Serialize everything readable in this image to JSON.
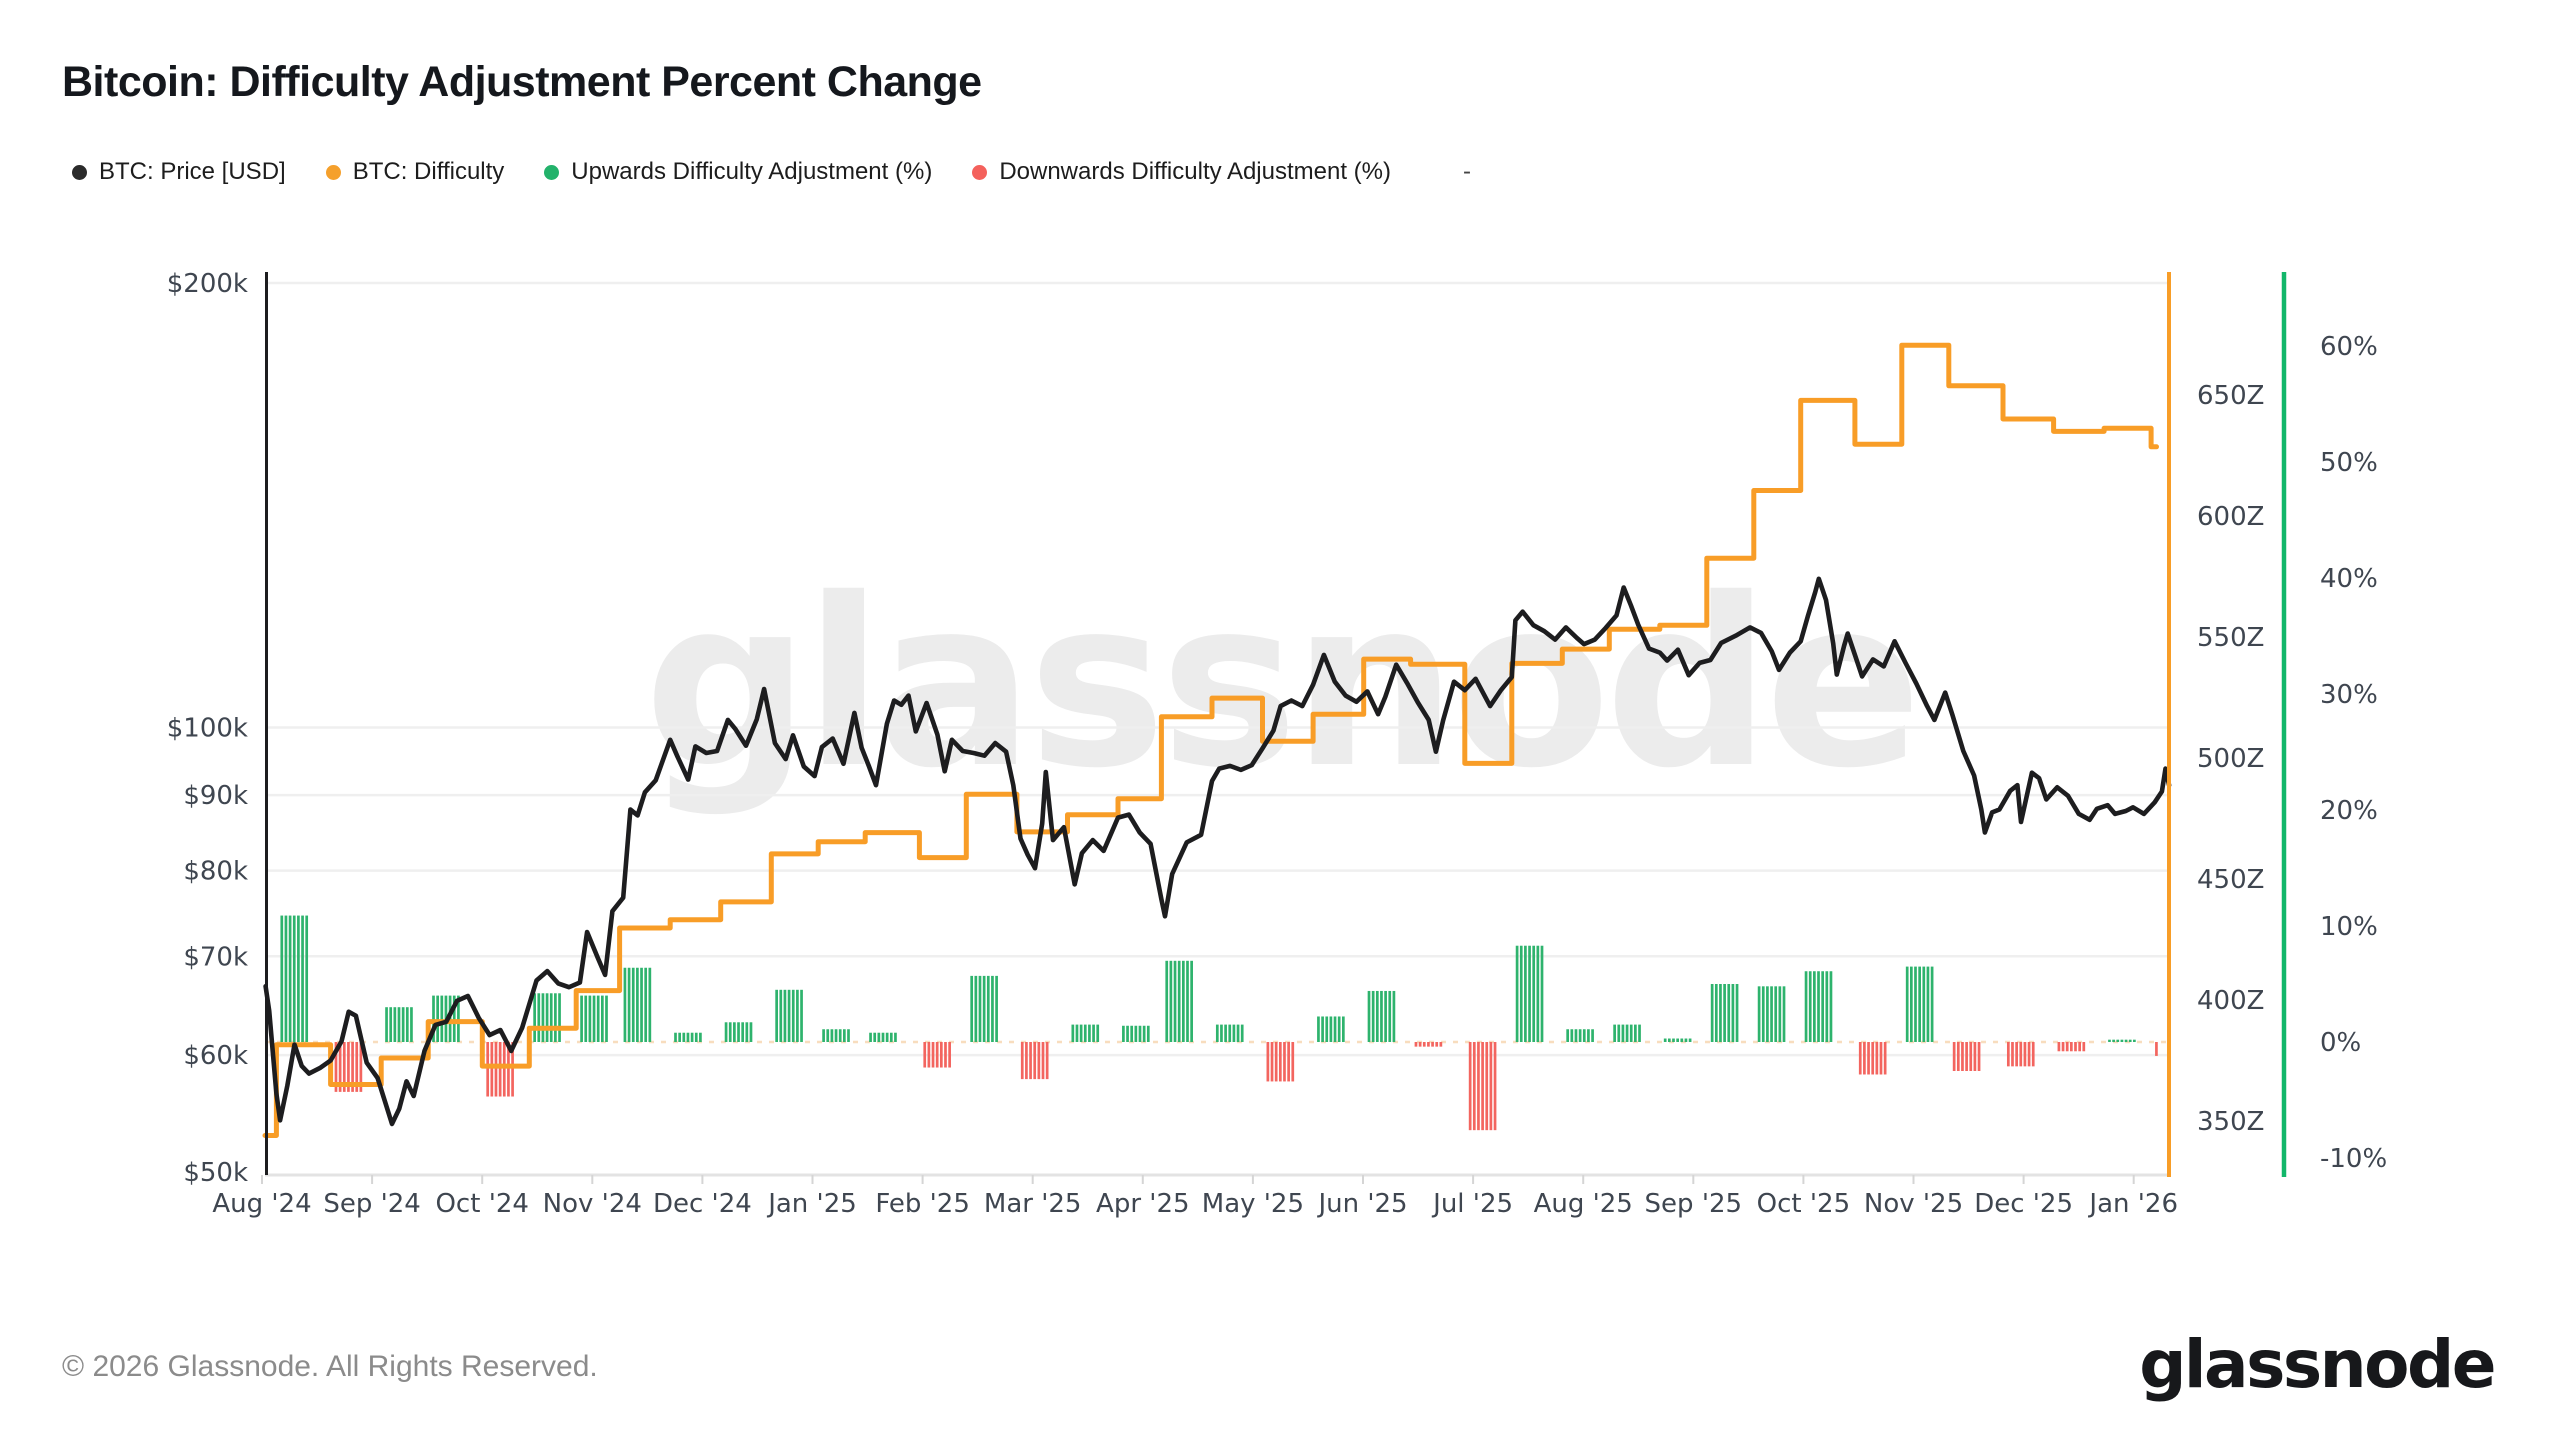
{
  "header": {
    "title": "Bitcoin: Difficulty Adjustment Percent Change"
  },
  "legend": {
    "items": [
      {
        "label": "BTC: Price [USD]",
        "color": "#2b2b2b"
      },
      {
        "label": "BTC: Difficulty",
        "color": "#f5a02c"
      },
      {
        "label": "Upwards Difficulty Adjustment (%)",
        "color": "#23b26b"
      },
      {
        "label": "Downwards Difficulty Adjustment (%)",
        "color": "#f4615c"
      }
    ],
    "trailing_dash": "-"
  },
  "watermark": "glassnode",
  "footer": {
    "copyright": "© 2026 Glassnode. All Rights Reserved.",
    "logo_text": "glassnode"
  },
  "chart_data": {
    "type": "mixed",
    "title": "Bitcoin: Difficulty Adjustment Percent Change",
    "x_axis": {
      "start_date": "2024-08-01",
      "end_date": "2026-01-12",
      "month_labels": [
        "Aug '24",
        "Sep '24",
        "Oct '24",
        "Nov '24",
        "Dec '24",
        "Jan '25",
        "Feb '25",
        "Mar '25",
        "Apr '25",
        "May '25",
        "Jun '25",
        "Jul '25",
        "Aug '25",
        "Sep '25",
        "Oct '25",
        "Nov '25",
        "Dec '25",
        "Jan '26"
      ]
    },
    "axes": {
      "price": {
        "side": "left",
        "scale": "log",
        "unit": "USD",
        "labels": [
          "$200k",
          "$100k",
          "$90k",
          "$80k",
          "$70k",
          "$60k",
          "$50k"
        ],
        "values": [
          200,
          100,
          90,
          80,
          70,
          60,
          50
        ],
        "range_k": [
          50,
          200
        ],
        "spine_color": "#1d1d1f"
      },
      "difficulty": {
        "side": "right",
        "scale": "linear",
        "unit": "Z (zettahash)",
        "labels": [
          "650Z",
          "600Z",
          "550Z",
          "500Z",
          "450Z",
          "400Z",
          "350Z"
        ],
        "values": [
          650,
          600,
          550,
          500,
          450,
          400,
          350
        ],
        "range": [
          340,
          690
        ],
        "spine_color": "#f89d27"
      },
      "percent": {
        "side": "far-right",
        "scale": "linear",
        "unit": "%",
        "labels": [
          "60%",
          "50%",
          "40%",
          "30%",
          "20%",
          "10%",
          "0%",
          "-10%"
        ],
        "values": [
          60,
          50,
          40,
          30,
          20,
          10,
          0,
          -10
        ],
        "range": [
          -12,
          62
        ],
        "spine_color": "#12b76a"
      }
    },
    "series": [
      {
        "name": "BTC: Price [USD]",
        "type": "line",
        "axis": "price",
        "color": "#1d1d1f",
        "note": "points are [days since 2024-08-01, price in $k]",
        "points": [
          [
            1,
            66.8
          ],
          [
            2,
            64.3
          ],
          [
            4,
            56.5
          ],
          [
            5,
            54.2
          ],
          [
            7,
            57.2
          ],
          [
            9,
            61.0
          ],
          [
            11,
            59.0
          ],
          [
            13,
            58.3
          ],
          [
            16,
            58.8
          ],
          [
            19,
            59.5
          ],
          [
            22,
            61.3
          ],
          [
            24,
            64.2
          ],
          [
            26,
            63.8
          ],
          [
            29,
            59.3
          ],
          [
            32,
            57.9
          ],
          [
            36,
            53.9
          ],
          [
            38,
            55.2
          ],
          [
            40,
            57.6
          ],
          [
            42,
            56.3
          ],
          [
            45,
            60.4
          ],
          [
            48,
            62.9
          ],
          [
            51,
            63.2
          ],
          [
            54,
            65.3
          ],
          [
            57,
            65.8
          ],
          [
            60,
            63.6
          ],
          [
            63,
            61.9
          ],
          [
            66,
            62.4
          ],
          [
            69,
            60.4
          ],
          [
            72,
            62.6
          ],
          [
            76,
            67.4
          ],
          [
            79,
            68.4
          ],
          [
            82,
            67.1
          ],
          [
            85,
            66.7
          ],
          [
            88,
            67.2
          ],
          [
            90,
            72.7
          ],
          [
            93,
            69.8
          ],
          [
            95,
            68.0
          ],
          [
            97,
            75.1
          ],
          [
            100,
            76.7
          ],
          [
            102,
            88.0
          ],
          [
            104,
            87.2
          ],
          [
            106,
            90.4
          ],
          [
            109,
            92.1
          ],
          [
            113,
            98.1
          ],
          [
            115,
            95.6
          ],
          [
            118,
            92.2
          ],
          [
            120,
            97.1
          ],
          [
            123,
            96.1
          ],
          [
            126,
            96.4
          ],
          [
            129,
            101.2
          ],
          [
            131,
            99.8
          ],
          [
            134,
            97.2
          ],
          [
            137,
            101.3
          ],
          [
            139,
            106.2
          ],
          [
            142,
            97.6
          ],
          [
            145,
            95.2
          ],
          [
            147,
            98.8
          ],
          [
            150,
            94.1
          ],
          [
            153,
            92.7
          ],
          [
            155,
            97.0
          ],
          [
            158,
            98.3
          ],
          [
            161,
            94.5
          ],
          [
            164,
            102.3
          ],
          [
            166,
            96.9
          ],
          [
            168,
            94.2
          ],
          [
            170,
            91.4
          ],
          [
            173,
            100.6
          ],
          [
            175,
            104.3
          ],
          [
            177,
            103.6
          ],
          [
            179,
            105.1
          ],
          [
            181,
            99.4
          ],
          [
            184,
            103.9
          ],
          [
            187,
            98.9
          ],
          [
            189,
            93.4
          ],
          [
            191,
            98.1
          ],
          [
            194,
            96.4
          ],
          [
            197,
            96.1
          ],
          [
            200,
            95.7
          ],
          [
            203,
            97.6
          ],
          [
            206,
            96.3
          ],
          [
            208,
            91.4
          ],
          [
            210,
            84.1
          ],
          [
            212,
            82.0
          ],
          [
            214,
            80.3
          ],
          [
            216,
            86.1
          ],
          [
            217,
            93.3
          ],
          [
            219,
            83.9
          ],
          [
            222,
            85.6
          ],
          [
            225,
            78.3
          ],
          [
            227,
            82.2
          ],
          [
            230,
            83.9
          ],
          [
            233,
            82.5
          ],
          [
            237,
            86.9
          ],
          [
            240,
            87.3
          ],
          [
            243,
            84.9
          ],
          [
            246,
            83.4
          ],
          [
            249,
            76.5
          ],
          [
            250,
            74.5
          ],
          [
            252,
            79.6
          ],
          [
            256,
            83.6
          ],
          [
            260,
            84.6
          ],
          [
            263,
            92.0
          ],
          [
            265,
            93.8
          ],
          [
            268,
            94.2
          ],
          [
            271,
            93.6
          ],
          [
            274,
            94.3
          ],
          [
            277,
            96.8
          ],
          [
            280,
            99.5
          ],
          [
            282,
            103.4
          ],
          [
            285,
            104.3
          ],
          [
            288,
            103.4
          ],
          [
            291,
            106.9
          ],
          [
            294,
            112.0
          ],
          [
            297,
            107.4
          ],
          [
            300,
            105.1
          ],
          [
            303,
            104.1
          ],
          [
            306,
            105.8
          ],
          [
            309,
            102.1
          ],
          [
            311,
            104.9
          ],
          [
            314,
            110.3
          ],
          [
            317,
            107.2
          ],
          [
            320,
            104.0
          ],
          [
            323,
            101.2
          ],
          [
            325,
            96.3
          ],
          [
            327,
            101.1
          ],
          [
            330,
            107.4
          ],
          [
            333,
            106.0
          ],
          [
            336,
            107.9
          ],
          [
            340,
            103.4
          ],
          [
            343,
            106.0
          ],
          [
            346,
            108.2
          ],
          [
            347,
            118.2
          ],
          [
            349,
            119.8
          ],
          [
            352,
            117.3
          ],
          [
            355,
            116.2
          ],
          [
            358,
            114.7
          ],
          [
            361,
            116.9
          ],
          [
            364,
            115.0
          ],
          [
            366,
            113.9
          ],
          [
            369,
            114.7
          ],
          [
            372,
            116.8
          ],
          [
            375,
            119.1
          ],
          [
            377,
            124.4
          ],
          [
            379,
            121.0
          ],
          [
            381,
            117.4
          ],
          [
            384,
            113.1
          ],
          [
            387,
            112.4
          ],
          [
            389,
            111.0
          ],
          [
            392,
            112.9
          ],
          [
            395,
            108.5
          ],
          [
            398,
            110.6
          ],
          [
            401,
            111.1
          ],
          [
            404,
            114.1
          ],
          [
            408,
            115.4
          ],
          [
            412,
            116.9
          ],
          [
            415,
            115.9
          ],
          [
            418,
            112.6
          ],
          [
            420,
            109.4
          ],
          [
            423,
            112.4
          ],
          [
            426,
            114.4
          ],
          [
            428,
            119.0
          ],
          [
            430,
            123.5
          ],
          [
            431,
            126.1
          ],
          [
            433,
            122.0
          ],
          [
            435,
            114.0
          ],
          [
            436,
            108.6
          ],
          [
            438,
            113.6
          ],
          [
            439,
            115.8
          ],
          [
            441,
            112.0
          ],
          [
            443,
            108.3
          ],
          [
            446,
            111.2
          ],
          [
            449,
            110.0
          ],
          [
            452,
            114.4
          ],
          [
            455,
            110.6
          ],
          [
            458,
            107.1
          ],
          [
            461,
            103.4
          ],
          [
            463,
            101.2
          ],
          [
            466,
            105.6
          ],
          [
            468,
            102.0
          ],
          [
            471,
            96.4
          ],
          [
            474,
            92.8
          ],
          [
            476,
            88.0
          ],
          [
            477,
            84.9
          ],
          [
            479,
            87.6
          ],
          [
            481,
            88.0
          ],
          [
            484,
            90.6
          ],
          [
            486,
            91.4
          ],
          [
            487,
            86.3
          ],
          [
            490,
            93.2
          ],
          [
            492,
            92.4
          ],
          [
            494,
            89.4
          ],
          [
            497,
            91.1
          ],
          [
            500,
            89.9
          ],
          [
            503,
            87.4
          ],
          [
            506,
            86.6
          ],
          [
            508,
            88.1
          ],
          [
            511,
            88.6
          ],
          [
            513,
            87.4
          ],
          [
            516,
            87.8
          ],
          [
            518,
            88.3
          ],
          [
            521,
            87.4
          ],
          [
            524,
            89.0
          ],
          [
            526,
            90.5
          ],
          [
            527,
            93.8
          ],
          [
            528,
            91.4
          ]
        ]
      },
      {
        "name": "BTC: Difficulty",
        "type": "step-line",
        "axis": "difficulty",
        "color": "#f89d27",
        "start_value_Z": 344.0,
        "note": "adjustments are [days since 2024-08-01, percent change]; level steps by pct at each epoch",
        "adjustments": [
          [
            4,
            10.9
          ],
          [
            19,
            -4.3
          ],
          [
            33,
            3.0
          ],
          [
            46,
            4.0
          ],
          [
            61,
            -4.7
          ],
          [
            74,
            4.2
          ],
          [
            87,
            4.0
          ],
          [
            99,
            6.4
          ],
          [
            113,
            0.8
          ],
          [
            127,
            1.7
          ],
          [
            141,
            4.5
          ],
          [
            154,
            1.1
          ],
          [
            167,
            0.8
          ],
          [
            182,
            -2.2
          ],
          [
            195,
            5.7
          ],
          [
            209,
            -3.2
          ],
          [
            223,
            1.5
          ],
          [
            237,
            1.4
          ],
          [
            249,
            7.0
          ],
          [
            263,
            1.5
          ],
          [
            277,
            -3.4
          ],
          [
            291,
            2.2
          ],
          [
            305,
            4.4
          ],
          [
            318,
            -0.4
          ],
          [
            333,
            -7.6
          ],
          [
            346,
            8.3
          ],
          [
            360,
            1.1
          ],
          [
            373,
            1.5
          ],
          [
            387,
            0.3
          ],
          [
            400,
            5.0
          ],
          [
            413,
            4.8
          ],
          [
            426,
            6.1
          ],
          [
            441,
            -2.8
          ],
          [
            454,
            6.5
          ],
          [
            467,
            -2.5
          ],
          [
            482,
            -2.1
          ],
          [
            496,
            -0.8
          ],
          [
            510,
            0.2
          ],
          [
            523,
            -1.2
          ]
        ]
      },
      {
        "name": "Upwards Difficulty Adjustment (%)",
        "type": "bar",
        "axis": "percent",
        "color": "#2eb36d",
        "source": "positive adjustments above"
      },
      {
        "name": "Downwards Difficulty Adjustment (%)",
        "type": "bar",
        "axis": "percent",
        "color": "#f3655f",
        "source": "negative adjustments above"
      }
    ],
    "style": {
      "grid_color": "#efefef",
      "zero_line_color": "#f8ddbe",
      "axis_text_color": "#3f4650",
      "watermark_color": "#ececec",
      "bar_width_days": 8
    }
  }
}
